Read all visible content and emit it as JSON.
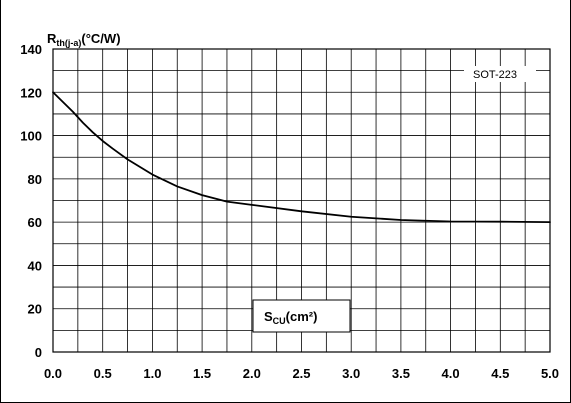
{
  "chart_data": {
    "type": "line",
    "title": "",
    "ylabel": {
      "main": "R",
      "sub": "th(j-a)",
      "unit": "(°C/W)"
    },
    "xlabel": {
      "main": "S",
      "sub": "CU",
      "unit": "(cm²)"
    },
    "xlim": [
      0,
      5
    ],
    "ylim": [
      0,
      140
    ],
    "x_ticks": [
      "0.0",
      "0.5",
      "1.0",
      "1.5",
      "2.0",
      "2.5",
      "3.0",
      "3.5",
      "4.0",
      "4.5",
      "5.0"
    ],
    "y_ticks": [
      "0",
      "20",
      "40",
      "60",
      "80",
      "100",
      "120",
      "140"
    ],
    "grid": true,
    "legend_position": "top-right",
    "series": [
      {
        "name": "SOT-223",
        "color": "#000000",
        "x": [
          0.0,
          0.1,
          0.2,
          0.3,
          0.4,
          0.5,
          0.6,
          0.75,
          1.0,
          1.25,
          1.5,
          1.75,
          2.0,
          2.5,
          3.0,
          3.5,
          4.0,
          4.5,
          5.0
        ],
        "y": [
          120,
          115.5,
          111,
          106,
          101.5,
          97.5,
          94,
          89,
          82,
          76.5,
          72.5,
          69.5,
          68,
          65,
          62.5,
          61,
          60.3,
          60.2,
          60
        ]
      }
    ]
  }
}
